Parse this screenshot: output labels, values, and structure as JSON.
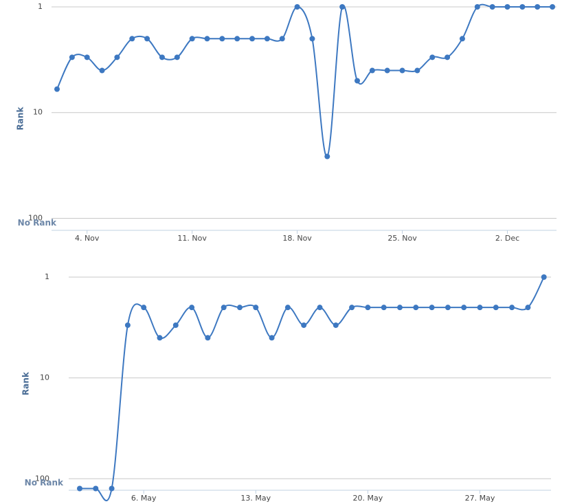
{
  "chart_data": [
    {
      "type": "line",
      "y_label": "Rank",
      "log_scale": true,
      "reversed": true,
      "grid": true,
      "color": "#3d78c1",
      "x": [
        "2. Nov",
        "3. Nov",
        "4. Nov",
        "5. Nov",
        "6. Nov",
        "7. Nov",
        "8. Nov",
        "9. Nov",
        "10. Nov",
        "11. Nov",
        "12. Nov",
        "13. Nov",
        "14. Nov",
        "15. Nov",
        "16. Nov",
        "17. Nov",
        "18. Nov",
        "19. Nov",
        "20. Nov",
        "21. Nov",
        "22. Nov",
        "23. Nov",
        "24. Nov",
        "25. Nov",
        "26. Nov",
        "27. Nov",
        "28. Nov",
        "29. Nov",
        "30. Nov",
        "1. Dec",
        "2. Dec",
        "3. Dec",
        "4. Dec",
        "5. Dec"
      ],
      "values": [
        6,
        3,
        3,
        4,
        3,
        2,
        2,
        3,
        3,
        2,
        2,
        2,
        2,
        2,
        2,
        2,
        1,
        2,
        26,
        1,
        5,
        4,
        4,
        4,
        4,
        3,
        3,
        2,
        1,
        1,
        1,
        1,
        1,
        1
      ],
      "xticks": [
        "4. Nov",
        "11. Nov",
        "18. Nov",
        "25. Nov",
        "2. Dec"
      ],
      "ylim": [
        1,
        130
      ],
      "yticks": [
        1,
        10,
        100,
        {
          "value": 125,
          "label": "No Rank"
        }
      ]
    },
    {
      "type": "line",
      "y_label": "Rank",
      "log_scale": true,
      "reversed": true,
      "grid": true,
      "color": "#3d78c1",
      "x": [
        "2. May",
        "3. May",
        "4. May",
        "5. May",
        "6. May",
        "7. May",
        "8. May",
        "9. May",
        "10. May",
        "11. May",
        "12. May",
        "13. May",
        "14. May",
        "15. May",
        "16. May",
        "17. May",
        "18. May",
        "19. May",
        "20. May",
        "21. May",
        "22. May",
        "23. May",
        "24. May",
        "25. May",
        "26. May",
        "27. May",
        "28. May",
        "29. May",
        "30. May",
        "31. May"
      ],
      "values": [
        125,
        125,
        125,
        3,
        2,
        4,
        3,
        2,
        4,
        2,
        2,
        2,
        4,
        2,
        3,
        2,
        3,
        2,
        2,
        2,
        2,
        2,
        2,
        2,
        2,
        2,
        2,
        2,
        2,
        1
      ],
      "xticks": [
        "6. May",
        "13. May",
        "20. May",
        "27. May"
      ],
      "ylim": [
        1,
        130
      ],
      "yticks": [
        1,
        10,
        100,
        {
          "value": 125,
          "label": "No Rank"
        }
      ]
    }
  ]
}
